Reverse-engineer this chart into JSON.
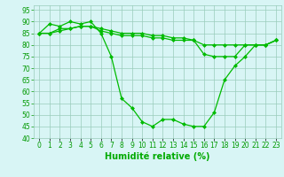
{
  "line1": [
    85,
    89,
    88,
    90,
    89,
    90,
    85,
    75,
    57,
    53,
    47,
    45,
    48,
    48,
    46,
    45,
    45,
    51,
    65,
    71,
    75,
    80,
    80,
    82
  ],
  "line2": [
    85,
    85,
    87,
    87,
    88,
    88,
    86,
    85,
    84,
    84,
    84,
    83,
    83,
    82,
    82,
    82,
    76,
    75,
    75,
    75,
    80,
    80,
    80,
    82
  ],
  "line3": [
    85,
    85,
    86,
    87,
    88,
    88,
    87,
    86,
    85,
    85,
    85,
    84,
    84,
    83,
    83,
    82,
    80,
    80,
    80,
    80,
    80,
    80,
    80,
    82
  ],
  "x": [
    0,
    1,
    2,
    3,
    4,
    5,
    6,
    7,
    8,
    9,
    10,
    11,
    12,
    13,
    14,
    15,
    16,
    17,
    18,
    19,
    20,
    21,
    22,
    23
  ],
  "line_color": "#00bb00",
  "marker": "D",
  "markersize": 2.0,
  "linewidth": 0.9,
  "bg_color": "#d8f5f5",
  "ylim": [
    40,
    97
  ],
  "xlim": [
    -0.5,
    23.5
  ],
  "yticks": [
    40,
    45,
    50,
    55,
    60,
    65,
    70,
    75,
    80,
    85,
    90,
    95
  ],
  "xtick_labels": [
    "0",
    "1",
    "2",
    "3",
    "4",
    "5",
    "6",
    "7",
    "8",
    "9",
    "10",
    "11",
    "12",
    "13",
    "14",
    "15",
    "16",
    "17",
    "18",
    "19",
    "20",
    "21",
    "22",
    "23"
  ],
  "xlabel": "Humidité relative (%)",
  "xlabel_color": "#00aa00",
  "tick_color": "#009900",
  "tick_fontsize": 5.5,
  "xlabel_fontsize": 7,
  "grid_major_color": "#99ccbb",
  "grid_minor_color": "#bbddcc"
}
